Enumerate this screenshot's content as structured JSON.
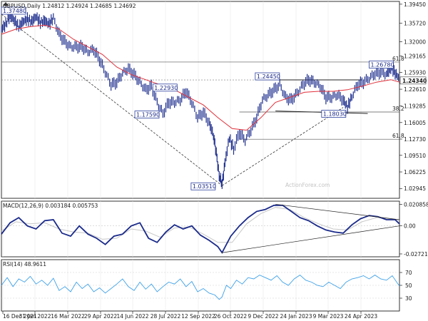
{
  "chart_data": [
    {
      "type": "candlestick",
      "title": "GBPUSD,Daily  1.24812 1.24924 1.24685 1.24692",
      "x_ticks": [
        "16 Dec 2021",
        "31 Jan 2022",
        "16 Mar 2022",
        "29 Apr 2022",
        "14 Jun 2022",
        "28 Jul 2022",
        "12 Sep 2022",
        "26 Oct 2022",
        "9 Dec 2022",
        "24 Jan 2023",
        "9 Mar 2023",
        "24 Apr 2023"
      ],
      "y_ticks": [
        "1.39450",
        "1.35720",
        "1.32000",
        "1.29165",
        "1.25930",
        "1.22610",
        "1.19285",
        "1.16005",
        "1.12730",
        "1.09510",
        "1.06225",
        "1.02945"
      ],
      "ylim": [
        1.01,
        1.4
      ],
      "current_price": "1.24340",
      "price_path": [
        [
          0,
          1.345
        ],
        [
          6,
          1.355
        ],
        [
          12,
          1.372
        ],
        [
          18,
          1.362
        ],
        [
          24,
          1.35
        ],
        [
          30,
          1.36
        ],
        [
          36,
          1.365
        ],
        [
          42,
          1.36
        ],
        [
          48,
          1.37
        ],
        [
          54,
          1.358
        ],
        [
          60,
          1.362
        ],
        [
          66,
          1.355
        ],
        [
          72,
          1.367
        ],
        [
          80,
          1.335
        ],
        [
          88,
          1.32
        ],
        [
          96,
          1.31
        ],
        [
          104,
          1.31
        ],
        [
          112,
          1.31
        ],
        [
          120,
          1.3
        ],
        [
          128,
          1.305
        ],
        [
          136,
          1.285
        ],
        [
          144,
          1.26
        ],
        [
          152,
          1.235
        ],
        [
          160,
          1.24
        ],
        [
          168,
          1.258
        ],
        [
          176,
          1.267
        ],
        [
          184,
          1.255
        ],
        [
          192,
          1.24
        ],
        [
          200,
          1.225
        ],
        [
          208,
          1.232
        ],
        [
          216,
          1.2
        ],
        [
          224,
          1.178
        ],
        [
          232,
          1.2
        ],
        [
          240,
          1.2
        ],
        [
          248,
          1.205
        ],
        [
          256,
          1.222
        ],
        [
          264,
          1.2
        ],
        [
          272,
          1.17
        ],
        [
          280,
          1.18
        ],
        [
          288,
          1.16
        ],
        [
          294,
          1.135
        ],
        [
          298,
          1.1
        ],
        [
          302,
          1.055
        ],
        [
          306,
          1.038
        ],
        [
          310,
          1.08
        ],
        [
          316,
          1.13
        ],
        [
          322,
          1.108
        ],
        [
          330,
          1.14
        ],
        [
          338,
          1.125
        ],
        [
          346,
          1.145
        ],
        [
          354,
          1.17
        ],
        [
          362,
          1.205
        ],
        [
          370,
          1.215
        ],
        [
          378,
          1.225
        ],
        [
          386,
          1.235
        ],
        [
          394,
          1.21
        ],
        [
          402,
          1.205
        ],
        [
          410,
          1.218
        ],
        [
          418,
          1.235
        ],
        [
          426,
          1.245
        ],
        [
          434,
          1.24
        ],
        [
          442,
          1.232
        ],
        [
          450,
          1.21
        ],
        [
          458,
          1.21
        ],
        [
          466,
          1.215
        ],
        [
          474,
          1.205
        ],
        [
          480,
          1.19
        ],
        [
          486,
          1.212
        ],
        [
          494,
          1.235
        ],
        [
          502,
          1.24
        ],
        [
          510,
          1.248
        ],
        [
          518,
          1.257
        ],
        [
          526,
          1.26
        ],
        [
          534,
          1.256
        ],
        [
          540,
          1.268
        ],
        [
          546,
          1.258
        ],
        [
          552,
          1.247
        ]
      ],
      "ma_path": [
        [
          0,
          1.335
        ],
        [
          20,
          1.345
        ],
        [
          40,
          1.35
        ],
        [
          60,
          1.353
        ],
        [
          80,
          1.345
        ],
        [
          100,
          1.325
        ],
        [
          120,
          1.31
        ],
        [
          140,
          1.295
        ],
        [
          160,
          1.27
        ],
        [
          180,
          1.255
        ],
        [
          200,
          1.245
        ],
        [
          220,
          1.235
        ],
        [
          240,
          1.225
        ],
        [
          260,
          1.21
        ],
        [
          280,
          1.195
        ],
        [
          300,
          1.17
        ],
        [
          320,
          1.148
        ],
        [
          340,
          1.145
        ],
        [
          360,
          1.17
        ],
        [
          380,
          1.2
        ],
        [
          400,
          1.21
        ],
        [
          420,
          1.22
        ],
        [
          440,
          1.222
        ],
        [
          460,
          1.222
        ],
        [
          480,
          1.225
        ],
        [
          500,
          1.232
        ],
        [
          520,
          1.24
        ],
        [
          540,
          1.245
        ],
        [
          552,
          1.24
        ]
      ],
      "annotations": [
        {
          "label": "1.37480",
          "x": 0,
          "y": 1.3748
        },
        {
          "label": "1.22930",
          "x": 210,
          "y": 1.2293
        },
        {
          "label": "1.17590",
          "x": 185,
          "y": 1.1759
        },
        {
          "label": "1.03510",
          "x": 265,
          "y": 1.0351
        },
        {
          "label": "1.24450",
          "x": 352,
          "y": 1.2445
        },
        {
          "label": "1.18030",
          "x": 444,
          "y": 1.1803
        },
        {
          "label": "1.26780",
          "x": 510,
          "y": 1.2678
        }
      ],
      "fib_levels": [
        {
          "label": "61.8",
          "y": 1.28
        },
        {
          "label": "38.2",
          "y": 1.181
        },
        {
          "label": "61.8",
          "y": 1.127
        }
      ],
      "horizontal_lines": [
        1.2445,
        1.18
      ],
      "trendlines": [
        {
          "from": [
            0,
            1.3748
          ],
          "to": [
            306,
            1.0351
          ]
        },
        {
          "from": [
            306,
            1.0351
          ],
          "to": [
            474,
            1.19
          ]
        }
      ]
    },
    {
      "type": "line",
      "title": "MACD(12,26,9) 0.003184 0.005753",
      "y_ticks": [
        "0.020858",
        "0.00",
        "-0.027213"
      ],
      "ylim": [
        -0.03,
        0.024
      ],
      "macd_path": [
        [
          0,
          -0.008
        ],
        [
          12,
          0.003
        ],
        [
          24,
          0.008
        ],
        [
          36,
          0.0
        ],
        [
          48,
          -0.003
        ],
        [
          60,
          0.005
        ],
        [
          72,
          0.006
        ],
        [
          84,
          -0.007
        ],
        [
          96,
          -0.01
        ],
        [
          108,
          0.0
        ],
        [
          120,
          -0.008
        ],
        [
          132,
          -0.012
        ],
        [
          144,
          -0.018
        ],
        [
          156,
          -0.01
        ],
        [
          168,
          -0.008
        ],
        [
          180,
          0.0
        ],
        [
          192,
          0.003
        ],
        [
          204,
          -0.012
        ],
        [
          216,
          -0.016
        ],
        [
          228,
          -0.006
        ],
        [
          240,
          0.001
        ],
        [
          252,
          -0.003
        ],
        [
          264,
          0.0
        ],
        [
          276,
          -0.009
        ],
        [
          288,
          -0.014
        ],
        [
          300,
          -0.02
        ],
        [
          306,
          -0.026
        ],
        [
          318,
          -0.01
        ],
        [
          330,
          0.0
        ],
        [
          342,
          0.008
        ],
        [
          354,
          0.014
        ],
        [
          366,
          0.016
        ],
        [
          378,
          0.02
        ],
        [
          390,
          0.02
        ],
        [
          402,
          0.014
        ],
        [
          414,
          0.008
        ],
        [
          426,
          0.005
        ],
        [
          438,
          0.0
        ],
        [
          450,
          -0.004
        ],
        [
          462,
          -0.006
        ],
        [
          474,
          -0.007
        ],
        [
          486,
          0.001
        ],
        [
          498,
          0.007
        ],
        [
          510,
          0.01
        ],
        [
          522,
          0.009
        ],
        [
          534,
          0.006
        ],
        [
          546,
          0.006
        ],
        [
          552,
          0.002
        ]
      ],
      "signal_path": [
        [
          0,
          -0.005
        ],
        [
          20,
          0.004
        ],
        [
          40,
          0.002
        ],
        [
          60,
          0.003
        ],
        [
          80,
          -0.003
        ],
        [
          100,
          -0.006
        ],
        [
          120,
          -0.007
        ],
        [
          140,
          -0.013
        ],
        [
          160,
          -0.012
        ],
        [
          180,
          -0.003
        ],
        [
          200,
          -0.005
        ],
        [
          220,
          -0.011
        ],
        [
          240,
          -0.002
        ],
        [
          260,
          -0.001
        ],
        [
          280,
          -0.008
        ],
        [
          300,
          -0.016
        ],
        [
          320,
          -0.016
        ],
        [
          340,
          0.002
        ],
        [
          360,
          0.012
        ],
        [
          380,
          0.018
        ],
        [
          400,
          0.016
        ],
        [
          420,
          0.008
        ],
        [
          440,
          0.002
        ],
        [
          460,
          -0.003
        ],
        [
          480,
          -0.004
        ],
        [
          500,
          0.004
        ],
        [
          520,
          0.008
        ],
        [
          540,
          0.007
        ],
        [
          552,
          0.005
        ]
      ],
      "trendlines": [
        {
          "from": [
            306,
            -0.026
          ],
          "to": [
            552,
            -0.0
          ]
        },
        {
          "from": [
            380,
            0.021
          ],
          "to": [
            552,
            0.006
          ]
        }
      ]
    },
    {
      "type": "line",
      "title": "RSI(14) 48.9611",
      "y_ticks": [
        "70",
        "50",
        "30"
      ],
      "ylim": [
        10,
        90
      ],
      "rsi_path": [
        [
          0,
          50
        ],
        [
          8,
          62
        ],
        [
          16,
          48
        ],
        [
          24,
          60
        ],
        [
          32,
          55
        ],
        [
          40,
          64
        ],
        [
          48,
          52
        ],
        [
          56,
          58
        ],
        [
          64,
          50
        ],
        [
          72,
          61
        ],
        [
          80,
          42
        ],
        [
          88,
          48
        ],
        [
          96,
          40
        ],
        [
          104,
          55
        ],
        [
          112,
          45
        ],
        [
          120,
          52
        ],
        [
          128,
          40
        ],
        [
          136,
          46
        ],
        [
          144,
          38
        ],
        [
          152,
          45
        ],
        [
          160,
          52
        ],
        [
          168,
          60
        ],
        [
          176,
          48
        ],
        [
          184,
          42
        ],
        [
          192,
          55
        ],
        [
          200,
          44
        ],
        [
          208,
          52
        ],
        [
          216,
          40
        ],
        [
          224,
          48
        ],
        [
          232,
          55
        ],
        [
          240,
          52
        ],
        [
          248,
          60
        ],
        [
          256,
          48
        ],
        [
          264,
          56
        ],
        [
          272,
          40
        ],
        [
          280,
          45
        ],
        [
          288,
          38
        ],
        [
          296,
          35
        ],
        [
          302,
          28
        ],
        [
          306,
          32
        ],
        [
          312,
          50
        ],
        [
          318,
          45
        ],
        [
          326,
          58
        ],
        [
          334,
          52
        ],
        [
          342,
          62
        ],
        [
          350,
          60
        ],
        [
          358,
          66
        ],
        [
          366,
          62
        ],
        [
          374,
          58
        ],
        [
          382,
          65
        ],
        [
          390,
          55
        ],
        [
          398,
          50
        ],
        [
          406,
          60
        ],
        [
          414,
          66
        ],
        [
          422,
          58
        ],
        [
          430,
          55
        ],
        [
          438,
          50
        ],
        [
          446,
          48
        ],
        [
          454,
          55
        ],
        [
          462,
          50
        ],
        [
          470,
          45
        ],
        [
          478,
          55
        ],
        [
          486,
          60
        ],
        [
          494,
          62
        ],
        [
          502,
          65
        ],
        [
          510,
          60
        ],
        [
          518,
          66
        ],
        [
          526,
          60
        ],
        [
          534,
          58
        ],
        [
          542,
          65
        ],
        [
          550,
          52
        ],
        [
          552,
          49
        ]
      ]
    }
  ],
  "watermark": "ActionForex.com",
  "colors": {
    "price": "#1f2f8e",
    "ma": "#e0303a",
    "macd": "#1a2a8a",
    "signal": "#c8c8c8",
    "rsi": "#3ea1e8",
    "grid": "#e6e6e6",
    "box": "#2a3f9e"
  }
}
